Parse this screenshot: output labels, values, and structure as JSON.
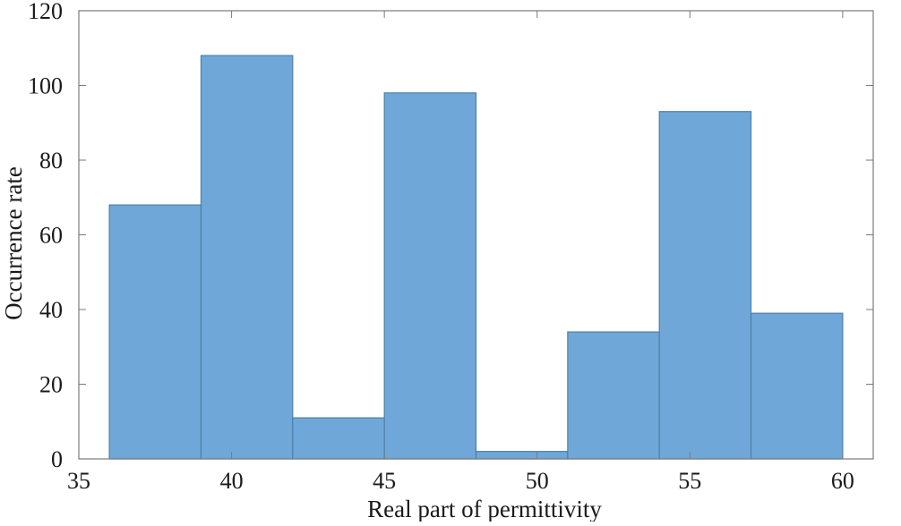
{
  "chart_data": {
    "type": "bar",
    "title": "",
    "xlabel": "Real part of permittivity",
    "ylabel": "Occurrence rate",
    "xlim": [
      35,
      61
    ],
    "ylim": [
      0,
      120
    ],
    "xticks": [
      35,
      40,
      45,
      50,
      55,
      60
    ],
    "yticks": [
      0,
      20,
      40,
      60,
      80,
      100,
      120
    ],
    "grid": false,
    "bins": [
      {
        "start": 36,
        "end": 39,
        "value": 68
      },
      {
        "start": 39,
        "end": 42,
        "value": 108
      },
      {
        "start": 42,
        "end": 45,
        "value": 11
      },
      {
        "start": 45,
        "end": 48,
        "value": 98
      },
      {
        "start": 48,
        "end": 51,
        "value": 2
      },
      {
        "start": 51,
        "end": 54,
        "value": 34
      },
      {
        "start": 54,
        "end": 57,
        "value": 93
      },
      {
        "start": 57,
        "end": 60,
        "value": 39
      }
    ],
    "colors": {
      "bar_fill": "#6fa8d8",
      "bar_edge": "#4f7fa8",
      "axis": "#7a7a7a"
    }
  }
}
